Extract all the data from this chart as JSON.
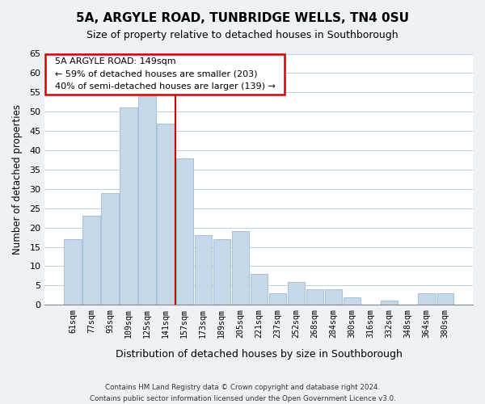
{
  "title": "5A, ARGYLE ROAD, TUNBRIDGE WELLS, TN4 0SU",
  "subtitle": "Size of property relative to detached houses in Southborough",
  "xlabel": "Distribution of detached houses by size in Southborough",
  "ylabel": "Number of detached properties",
  "bar_labels": [
    "61sqm",
    "77sqm",
    "93sqm",
    "109sqm",
    "125sqm",
    "141sqm",
    "157sqm",
    "173sqm",
    "189sqm",
    "205sqm",
    "221sqm",
    "237sqm",
    "252sqm",
    "268sqm",
    "284sqm",
    "300sqm",
    "316sqm",
    "332sqm",
    "348sqm",
    "364sqm",
    "380sqm"
  ],
  "bar_values": [
    17,
    23,
    29,
    51,
    54,
    47,
    38,
    18,
    17,
    19,
    8,
    3,
    6,
    4,
    4,
    2,
    0,
    1,
    0,
    3,
    3
  ],
  "bar_color": "#c6d9ea",
  "bar_edge_color": "#a8c4d8",
  "vline_color": "#cc0000",
  "annotation_title": "5A ARGYLE ROAD: 149sqm",
  "annotation_line1": "← 59% of detached houses are smaller (203)",
  "annotation_line2": "40% of semi-detached houses are larger (139) →",
  "annotation_box_color": "#ffffff",
  "annotation_box_edge": "#cc0000",
  "ylim": [
    0,
    65
  ],
  "yticks": [
    0,
    5,
    10,
    15,
    20,
    25,
    30,
    35,
    40,
    45,
    50,
    55,
    60,
    65
  ],
  "footer1": "Contains HM Land Registry data © Crown copyright and database right 2024.",
  "footer2": "Contains public sector information licensed under the Open Government Licence v3.0.",
  "bg_color": "#eef2f7",
  "plot_bg_color": "#ffffff",
  "grid_color": "#c0d0e0"
}
